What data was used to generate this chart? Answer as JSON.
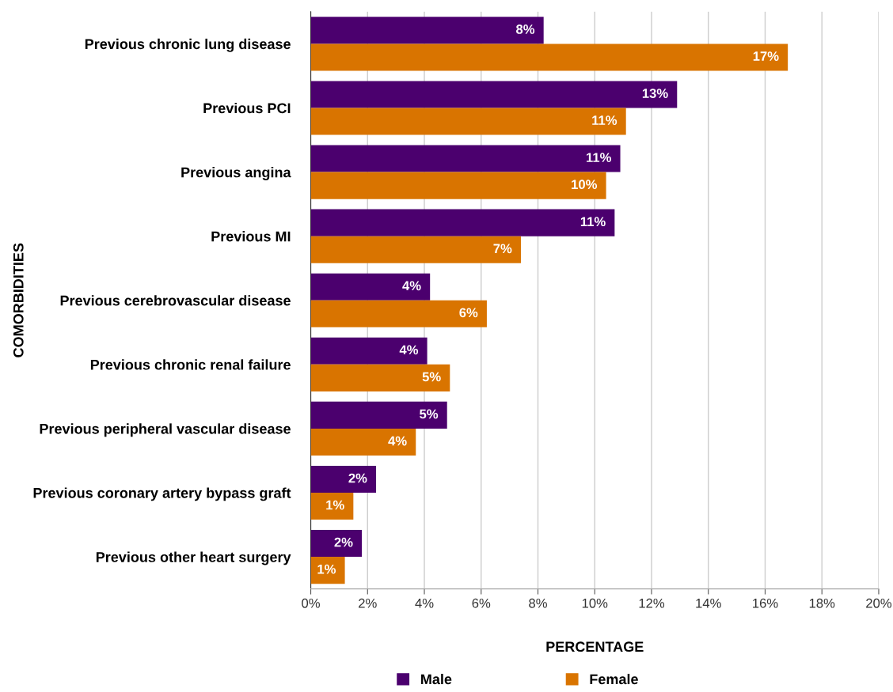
{
  "chart_data": {
    "type": "bar",
    "orientation": "horizontal",
    "xlabel": "PERCENTAGE",
    "ylabel": "COMORBIDITIES",
    "categories": [
      "Previous chronic lung disease",
      "Previous PCI",
      "Previous angina",
      "Previous MI",
      "Previous cerebrovascular disease",
      "Previous chronic renal failure",
      "Previous peripheral vascular disease",
      "Previous coronary artery bypass graft",
      "Previous other heart surgery"
    ],
    "series": [
      {
        "name": "Male",
        "color": "#4b006e",
        "values": [
          8.2,
          12.9,
          10.9,
          10.7,
          4.2,
          4.1,
          4.8,
          2.3,
          1.8
        ],
        "value_labels": [
          "8%",
          "13%",
          "11%",
          "11%",
          "4%",
          "4%",
          "5%",
          "2%",
          "2%"
        ]
      },
      {
        "name": "Female",
        "color": "#d97400",
        "values": [
          16.8,
          11.1,
          10.4,
          7.4,
          6.2,
          4.9,
          3.7,
          1.5,
          1.2
        ],
        "value_labels": [
          "17%",
          "11%",
          "10%",
          "7%",
          "6%",
          "5%",
          "4%",
          "1%",
          "1%"
        ]
      }
    ],
    "xlim": [
      0,
      20
    ],
    "xticks": [
      {
        "value": 0,
        "label": "0%"
      },
      {
        "value": 2,
        "label": "2%"
      },
      {
        "value": 4,
        "label": "4%"
      },
      {
        "value": 6,
        "label": "6%"
      },
      {
        "value": 8,
        "label": "8%"
      },
      {
        "value": 10,
        "label": "10%"
      },
      {
        "value": 12,
        "label": "12%"
      },
      {
        "value": 14,
        "label": "14%"
      },
      {
        "value": 16,
        "label": "16%"
      },
      {
        "value": 18,
        "label": "18%"
      },
      {
        "value": 20,
        "label": "20%"
      }
    ],
    "grid": "x",
    "legend": "bottom"
  }
}
